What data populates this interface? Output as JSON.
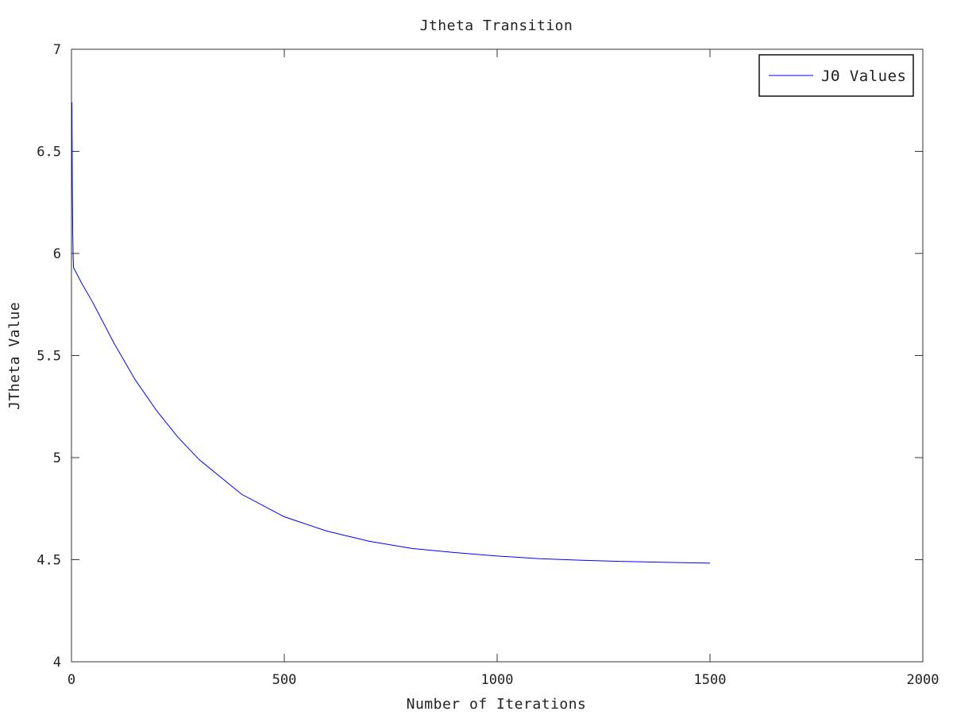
{
  "chart_data": {
    "type": "line",
    "title": "Jtheta Transition",
    "xlabel": "Number of Iterations",
    "ylabel": "JTheta Value",
    "xlim": [
      0,
      2000
    ],
    "ylim": [
      4,
      7
    ],
    "x_ticks": [
      0,
      500,
      1000,
      1500,
      2000
    ],
    "x_tick_labels": [
      "0",
      "500",
      "1000",
      "1500",
      "2000"
    ],
    "y_ticks": [
      4,
      4.5,
      5,
      5.5,
      6,
      6.5,
      7
    ],
    "y_tick_labels": [
      "4",
      "4.5",
      "5",
      "5.5",
      "6",
      "6.5",
      "7"
    ],
    "grid": false,
    "legend": {
      "placement": "top-right",
      "entries": [
        "JΘ Values"
      ]
    },
    "series": [
      {
        "name": "JΘ Values",
        "color": "#0000ff",
        "x": [
          1,
          2,
          3,
          4,
          5,
          10,
          25,
          50,
          75,
          100,
          150,
          200,
          250,
          300,
          400,
          500,
          600,
          700,
          800,
          900,
          1000,
          1100,
          1200,
          1300,
          1400,
          1500
        ],
        "values": [
          6.74,
          6.32,
          6.1,
          5.98,
          5.93,
          5.91,
          5.85,
          5.76,
          5.66,
          5.56,
          5.38,
          5.23,
          5.1,
          4.99,
          4.82,
          4.71,
          4.64,
          4.59,
          4.555,
          4.535,
          4.518,
          4.505,
          4.497,
          4.491,
          4.487,
          4.483
        ]
      }
    ]
  }
}
